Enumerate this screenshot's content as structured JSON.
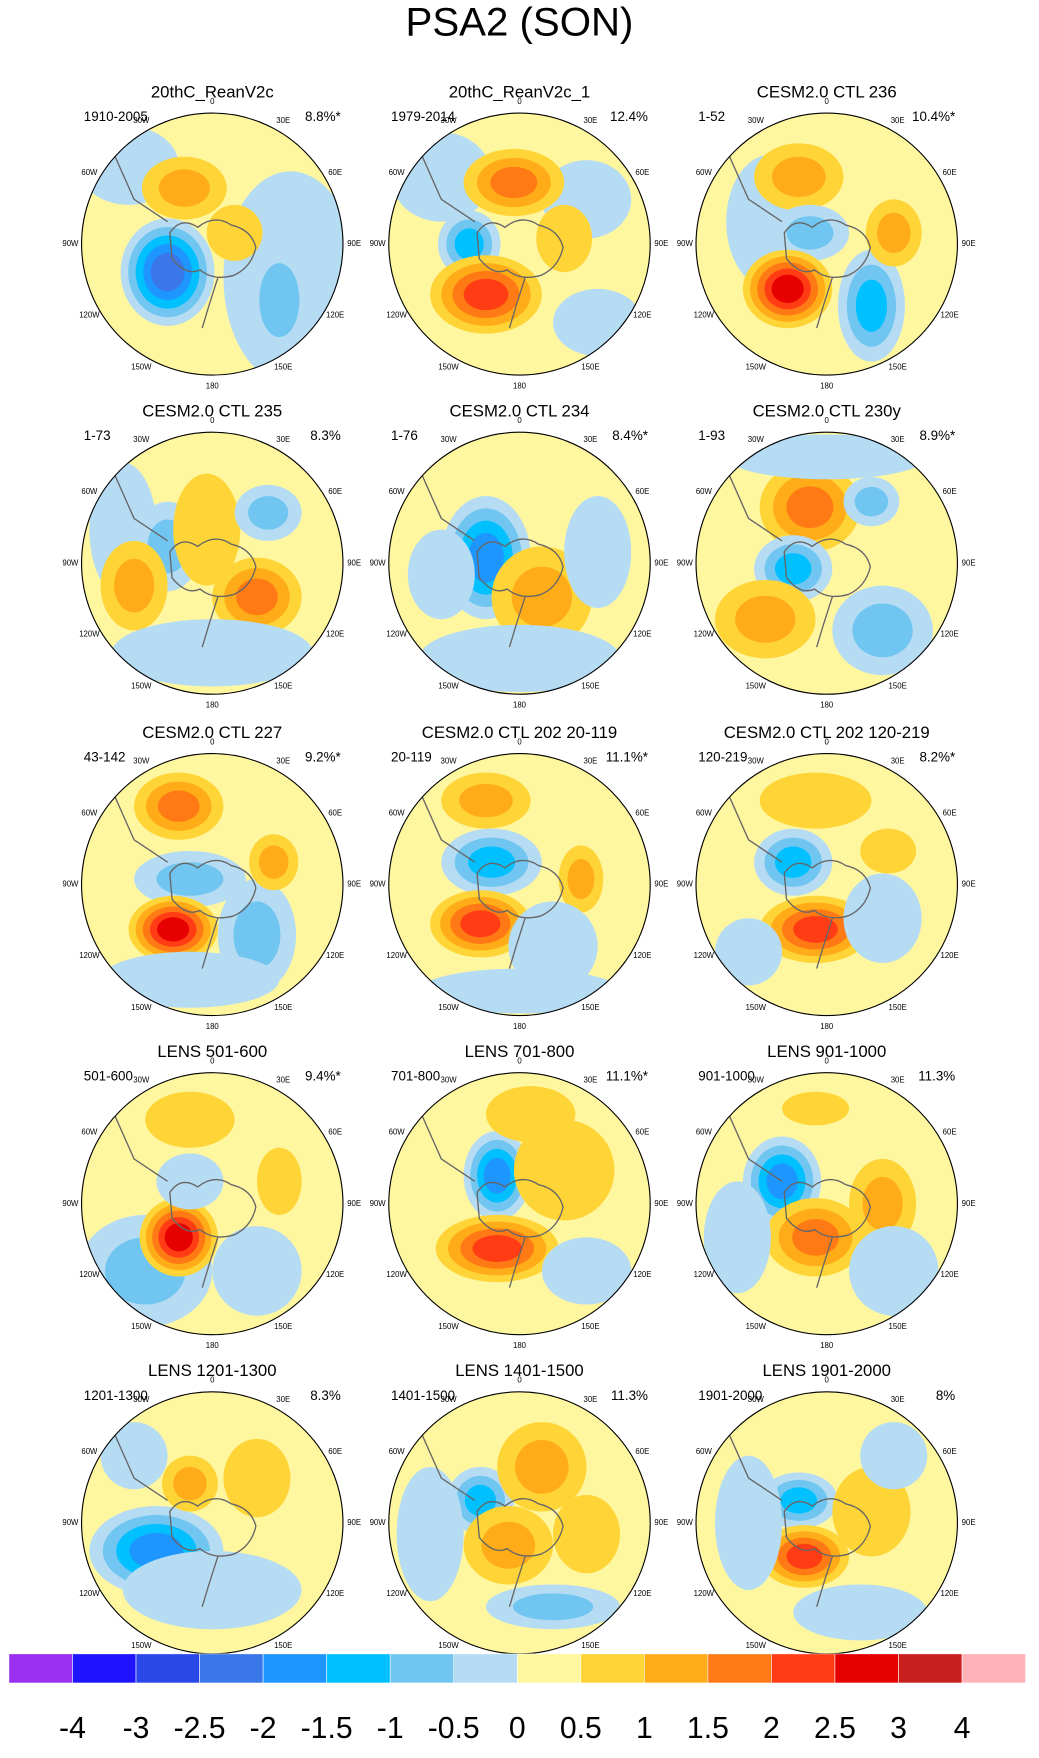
{
  "title": "PSA2 (SON)",
  "panels": [
    {
      "title": "20thC_ReanV2c",
      "period": "1910-2005",
      "variance": "8.8%*"
    },
    {
      "title": "20thC_ReanV2c_1",
      "period": "1979-2014",
      "variance": "12.4%"
    },
    {
      "title": "CESM2.0 CTL 236",
      "period": "1-52",
      "variance": "10.4%*"
    },
    {
      "title": "CESM2.0 CTL 235",
      "period": "1-73",
      "variance": "8.3%"
    },
    {
      "title": "CESM2.0 CTL 234",
      "period": "1-76",
      "variance": "8.4%*"
    },
    {
      "title": "CESM2.0 CTL 230y",
      "period": "1-93",
      "variance": "8.9%*"
    },
    {
      "title": "CESM2.0 CTL 227",
      "period": "43-142",
      "variance": "9.2%*"
    },
    {
      "title": "CESM2.0 CTL 202 20-119",
      "period": "20-119",
      "variance": "11.1%*"
    },
    {
      "title": "CESM2.0 CTL 202 120-219",
      "period": "120-219",
      "variance": "8.2%*"
    },
    {
      "title": "LENS 501-600",
      "period": "501-600",
      "variance": "9.4%*"
    },
    {
      "title": "LENS 701-800",
      "period": "701-800",
      "variance": "11.1%*"
    },
    {
      "title": "LENS 901-1000",
      "period": "901-1000",
      "variance": "11.3%"
    },
    {
      "title": "LENS 1201-1300",
      "period": "1201-1300",
      "variance": "8.3%"
    },
    {
      "title": "LENS 1401-1500",
      "period": "1401-1500",
      "variance": "11.3%"
    },
    {
      "title": "LENS 1901-2000",
      "period": "1901-2000",
      "variance": "8%"
    }
  ],
  "longitude_labels": [
    "0",
    "30E",
    "60E",
    "90E",
    "120E",
    "150E",
    "180",
    "150W",
    "120W",
    "90W",
    "60W",
    "30W"
  ],
  "colorbar": {
    "levels": [
      -4,
      -3,
      -2.5,
      -2,
      -1.5,
      -1,
      -0.5,
      0,
      0.5,
      1,
      1.5,
      2,
      2.5,
      3,
      4
    ],
    "colors": [
      "#9b2ff0",
      "#1e14ff",
      "#2a48e8",
      "#3a78ea",
      "#1e96ff",
      "#00c0ff",
      "#70c6f0",
      "#b6dcf4",
      "#fff6a0",
      "#ffd436",
      "#ffac18",
      "#ff7a14",
      "#ff3c14",
      "#e60000",
      "#c81e1e",
      "#ffb2b8"
    ]
  }
}
